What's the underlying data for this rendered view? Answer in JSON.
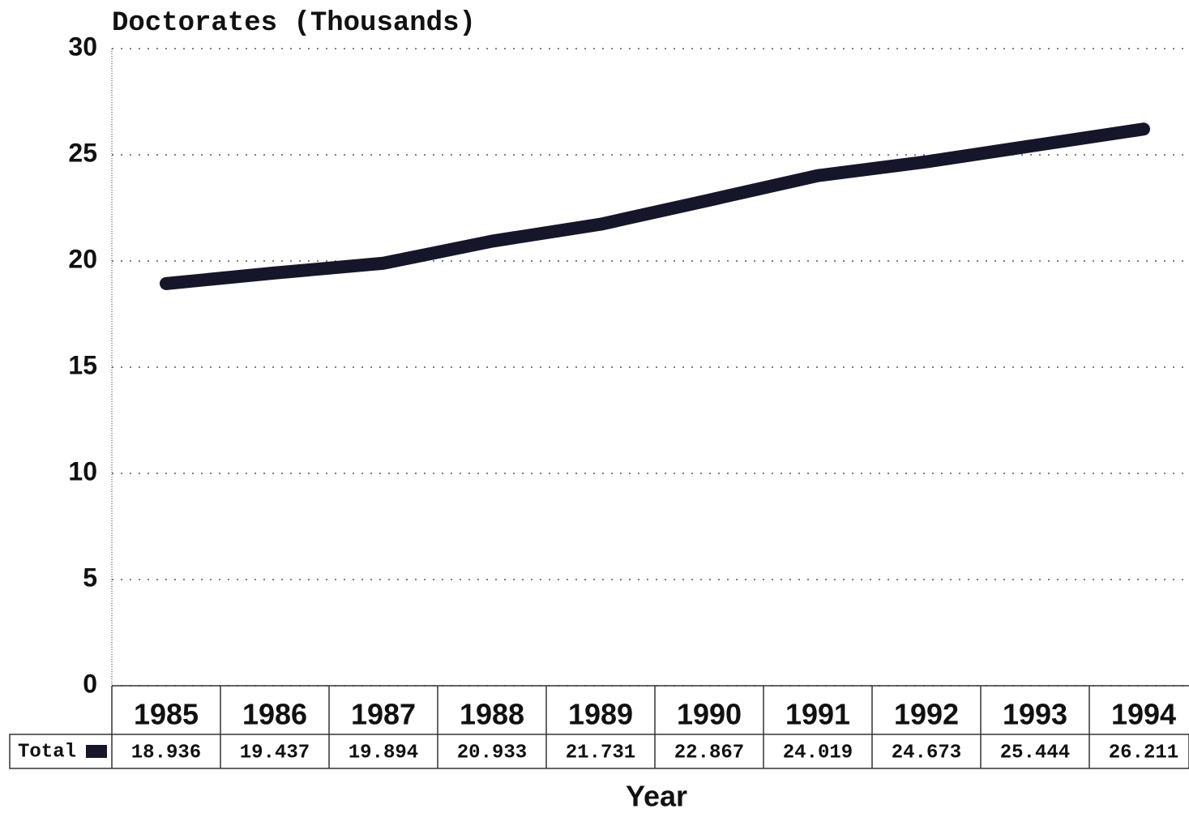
{
  "chart_data": {
    "type": "line",
    "y_label": "Doctorates (Thousands)",
    "x_label": "Year",
    "categories": [
      "1985",
      "1986",
      "1987",
      "1988",
      "1989",
      "1990",
      "1991",
      "1992",
      "1993",
      "1994"
    ],
    "series": [
      {
        "name": "Total",
        "color": "#16162a",
        "values": [
          18.936,
          19.437,
          19.894,
          20.933,
          21.731,
          22.867,
          24.019,
          24.673,
          25.444,
          26.211
        ]
      }
    ],
    "ylim": [
      0,
      30
    ],
    "yticks": [
      0,
      5,
      10,
      15,
      20,
      25,
      30
    ],
    "grid": true
  }
}
